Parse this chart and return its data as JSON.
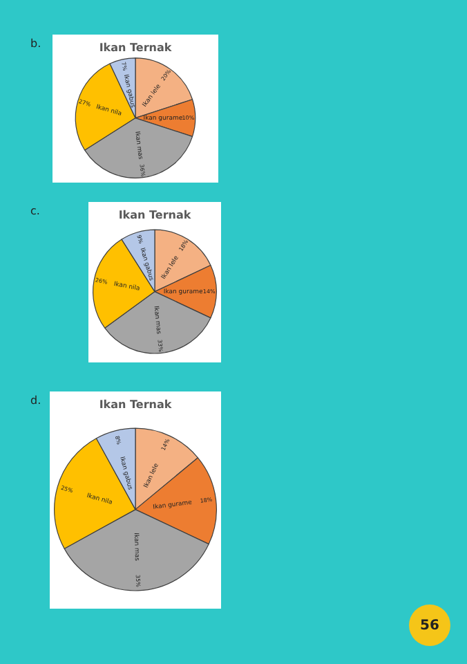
{
  "chart_data": [
    {
      "type": "pie",
      "title": "Ikan Ternak",
      "categories": [
        "Ikan lele",
        "Ikan gurame",
        "Ikan mas",
        "Ikan nila",
        "Ikan gabus"
      ],
      "values": [
        20,
        10,
        36,
        27,
        7
      ],
      "value_labels": [
        "20%",
        "10%",
        "36%",
        "27%",
        "7%"
      ],
      "colors": [
        "#f4b183",
        "#ed7d31",
        "#a5a5a5",
        "#ffc000",
        "#b4c7e7"
      ],
      "legend": false,
      "annotations": [
        "b."
      ]
    },
    {
      "type": "pie",
      "title": "Ikan Ternak",
      "categories": [
        "Ikan lele",
        "Ikan gurame",
        "Ikan mas",
        "Ikan nila",
        "Ikan gabus"
      ],
      "values": [
        18,
        14,
        33,
        26,
        9
      ],
      "value_labels": [
        "18%",
        "14%",
        "33%",
        "26%",
        "9%"
      ],
      "colors": [
        "#f4b183",
        "#ed7d31",
        "#a5a5a5",
        "#ffc000",
        "#b4c7e7"
      ],
      "legend": false,
      "annotations": [
        "c."
      ]
    },
    {
      "type": "pie",
      "title": "Ikan Ternak",
      "categories": [
        "Ikan lele",
        "Ikan gurame",
        "Ikan mas",
        "Ikan nila",
        "Ikan gabus"
      ],
      "values": [
        14,
        18,
        35,
        25,
        8
      ],
      "value_labels": [
        "14%",
        "18%",
        "35%",
        "25%",
        "8%"
      ],
      "colors": [
        "#f4b183",
        "#ed7d31",
        "#a5a5a5",
        "#ffc000",
        "#b4c7e7"
      ],
      "legend": false,
      "annotations": [
        "d.",
        "56"
      ]
    }
  ]
}
